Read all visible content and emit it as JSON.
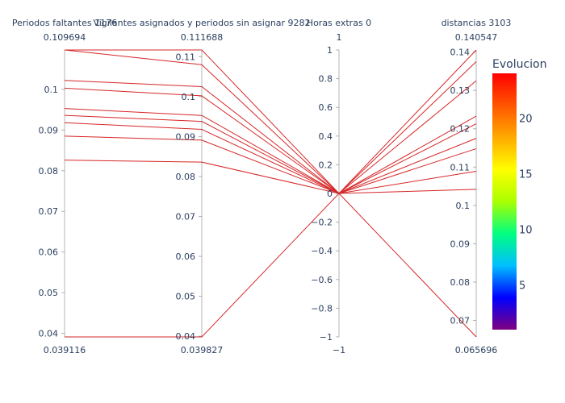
{
  "chart_data": {
    "type": "parallel_coordinates",
    "line_color": "#d62728",
    "dimensions": [
      {
        "label": "Periodos faltantes 1176",
        "range": [
          0.039116,
          0.109694
        ],
        "range_labels": {
          "max": "0.109694",
          "min": "0.039116"
        },
        "ticks": [
          0.04,
          0.05,
          0.06,
          0.07,
          0.08,
          0.09,
          0.1
        ],
        "tick_labels": [
          "0.04",
          "0.05",
          "0.06",
          "0.07",
          "0.08",
          "0.09",
          "0.1"
        ]
      },
      {
        "label": "Vigilantes asignados y periodos sin asignar 9282",
        "range": [
          0.039827,
          0.111688
        ],
        "range_labels": {
          "max": "0.111688",
          "min": "0.039827"
        },
        "ticks": [
          0.04,
          0.05,
          0.06,
          0.07,
          0.08,
          0.09,
          0.1,
          0.11
        ],
        "tick_labels": [
          "0.04",
          "0.05",
          "0.06",
          "0.07",
          "0.08",
          "0.09",
          "0.1",
          "0.11"
        ]
      },
      {
        "label": "Horas extras 0",
        "range": [
          -1,
          1
        ],
        "range_labels": {
          "max": "1",
          "min": "−1"
        },
        "ticks": [
          -1,
          -0.8,
          -0.6,
          -0.4,
          -0.2,
          0,
          0.2,
          0.4,
          0.6,
          0.8,
          1
        ],
        "tick_labels": [
          "−1",
          "−0.8",
          "−0.6",
          "−0.4",
          "−0.2",
          "0",
          "0.2",
          "0.4",
          "0.6",
          "0.8",
          "1"
        ]
      },
      {
        "label": "distancias 3103",
        "range": [
          0.065696,
          0.140547
        ],
        "range_labels": {
          "max": "0.140547",
          "min": "0.065696"
        },
        "ticks": [
          0.07,
          0.08,
          0.09,
          0.1,
          0.11,
          0.12,
          0.13,
          0.14
        ],
        "tick_labels": [
          "0.07",
          "0.08",
          "0.09",
          "0.1",
          "0.11",
          "0.12",
          "0.13",
          "0.14"
        ]
      }
    ],
    "lines": [
      [
        0.109694,
        0.111688,
        0,
        0.140547
      ],
      [
        0.109694,
        0.108,
        0,
        0.1375
      ],
      [
        0.1022,
        0.1025,
        0,
        0.1325
      ],
      [
        0.1003,
        0.1002,
        0,
        0.1233
      ],
      [
        0.0953,
        0.0953,
        0,
        0.1213
      ],
      [
        0.0936,
        0.0938,
        0,
        0.1175
      ],
      [
        0.0918,
        0.0918,
        0,
        0.1148
      ],
      [
        0.0885,
        0.0891,
        0,
        0.1089
      ],
      [
        0.0826,
        0.0836,
        0,
        0.1042
      ],
      [
        0.039116,
        0.039827,
        0,
        0.065696
      ]
    ],
    "colorbar": {
      "title": "Evolucion",
      "range": [
        1,
        24
      ],
      "ticks": [
        5,
        10,
        15,
        20
      ],
      "tick_labels": [
        "5",
        "10",
        "15",
        "20"
      ],
      "colors": [
        "#800080",
        "#0000ff",
        "#00bfff",
        "#00ff80",
        "#aaff00",
        "#ffff00",
        "#ffaa00",
        "#ff5500",
        "#ff0000"
      ]
    }
  }
}
